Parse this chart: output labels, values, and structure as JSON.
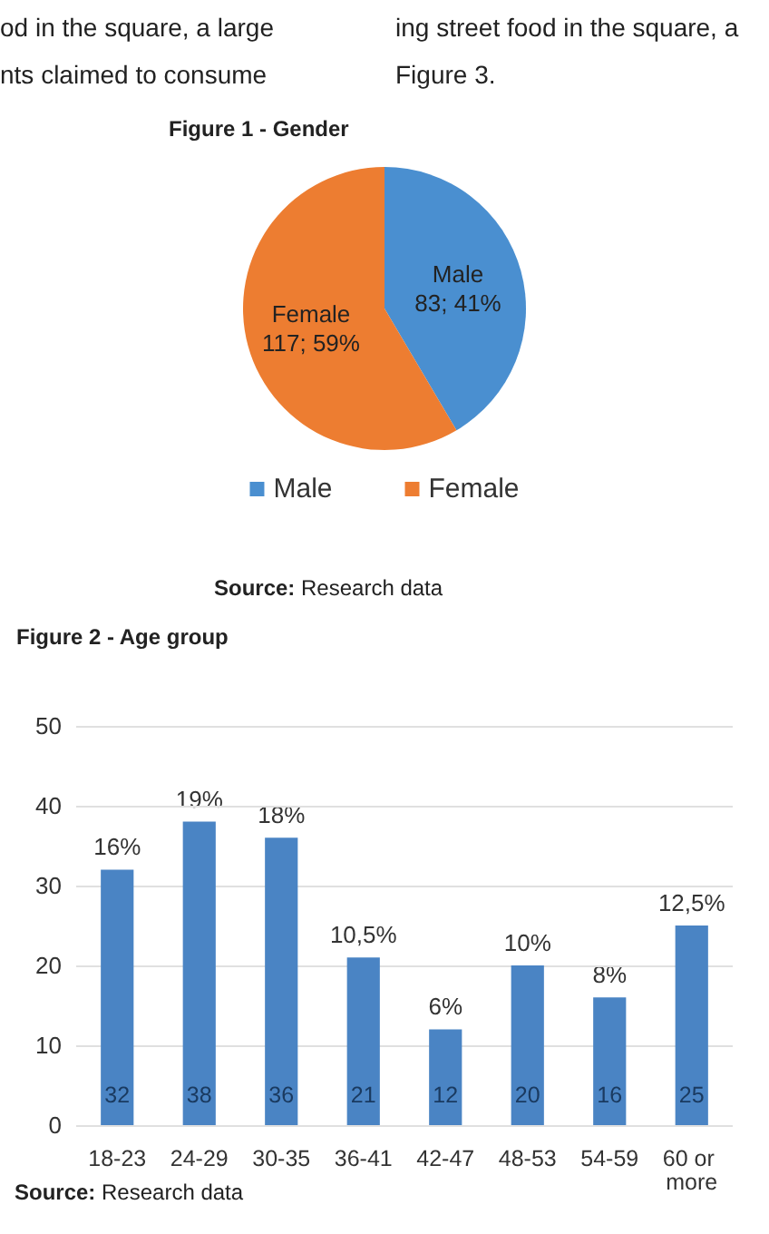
{
  "chart_data": [
    {
      "type": "pie",
      "title": "Figure 1 - Gender",
      "categories": [
        "Male",
        "Female"
      ],
      "values": [
        83,
        117
      ],
      "value_labels": [
        "83; 41%",
        "117; 59%"
      ],
      "colors": [
        "#4a8fd0",
        "#ed7d31"
      ],
      "legend": "bottom",
      "annotations": [
        "od in the square, a large\nnts claimed to consume",
        "ing street food in the square, a\nFigure 3.",
        "Source: Research data"
      ]
    },
    {
      "type": "bar",
      "title": "Figure 2 - Age group",
      "categories": [
        "18-23",
        "24-29",
        "30-35",
        "36-41",
        "42-47",
        "48-53",
        "54-59",
        "60 or more"
      ],
      "values": [
        32,
        38,
        36,
        21,
        12,
        20,
        16,
        25
      ],
      "color": "#4a84c4",
      "data_labels": true,
      "ylim": [
        0,
        50
      ],
      "yticks": [
        0,
        10,
        20,
        30,
        40,
        50
      ],
      "grid": "y",
      "annotations": [
        {
          "text": "16%",
          "x": "18-23",
          "y": 32
        },
        {
          "text": "19%",
          "x": "24-29",
          "y": 38
        },
        {
          "text": "18%",
          "x": "30-35",
          "y": 36
        },
        {
          "text": "10,5%",
          "x": "36-41",
          "y": 21
        },
        {
          "text": "6%",
          "x": "42-47",
          "y": 12
        },
        {
          "text": "10%",
          "x": "48-53",
          "y": 20
        },
        {
          "text": "8%",
          "x": "54-59",
          "y": 16
        },
        {
          "text": "12,5%",
          "x": "60 or more",
          "y": 25
        },
        "Source: Research data"
      ]
    }
  ]
}
